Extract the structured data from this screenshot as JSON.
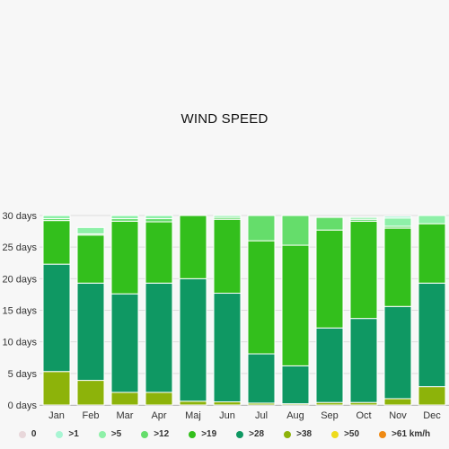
{
  "chart_data": {
    "type": "bar",
    "title": "WIND SPEED",
    "xlabel": "",
    "ylabel": "",
    "ylim": [
      0,
      30
    ],
    "y_ticks": [
      "0 days",
      "5 days",
      "10 days",
      "15 days",
      "20 days",
      "25 days",
      "30 days"
    ],
    "categories": [
      "Jan",
      "Feb",
      "Mar",
      "Apr",
      "Maj",
      "Jun",
      "Jul",
      "Aug",
      "Sep",
      "Oct",
      "Nov",
      "Dec"
    ],
    "series": [
      {
        "name": "0",
        "color": "#e8d7da",
        "values": [
          0,
          0,
          0,
          0,
          0,
          0,
          0,
          0,
          0,
          0,
          0,
          0
        ]
      },
      {
        "name": ">1",
        "color": "#a8f5d3",
        "values": [
          0,
          0,
          0,
          0,
          0,
          0,
          0,
          0,
          0,
          0,
          0.3,
          0
        ]
      },
      {
        "name": ">5",
        "color": "#8ef0a8",
        "values": [
          0.5,
          1.0,
          0.5,
          0.5,
          0,
          0.3,
          0,
          0,
          0,
          0.3,
          1.3,
          1.3
        ]
      },
      {
        "name": ">12",
        "color": "#65dd6b",
        "values": [
          0.3,
          0.2,
          0.4,
          0.5,
          0,
          0.3,
          4.0,
          4.7,
          2.0,
          0.3,
          0.3,
          0
        ]
      },
      {
        "name": ">19",
        "color": "#33bf1c",
        "values": [
          6.9,
          7.6,
          11.5,
          9.7,
          10.0,
          11.7,
          17.9,
          19.1,
          15.5,
          15.4,
          12.4,
          9.4
        ]
      },
      {
        "name": ">28",
        "color": "#0f9863",
        "values": [
          17.0,
          15.4,
          15.6,
          17.3,
          19.4,
          17.2,
          7.8,
          6.0,
          11.8,
          13.3,
          14.6,
          16.4
        ]
      },
      {
        "name": ">38",
        "color": "#8db30a",
        "values": [
          5.3,
          3.9,
          2.0,
          2.0,
          0.6,
          0.5,
          0.3,
          0.2,
          0.4,
          0.4,
          1.0,
          2.9
        ]
      },
      {
        "name": ">50",
        "color": "#eedb1c",
        "values": [
          0,
          0,
          0,
          0,
          0,
          0,
          0,
          0,
          0,
          0,
          0,
          0
        ]
      },
      {
        "name": ">61 km/h",
        "color": "#ef8a14",
        "values": [
          0,
          0,
          0,
          0,
          0,
          0,
          0,
          0,
          0,
          0,
          0,
          0
        ]
      }
    ],
    "grid": true,
    "legend_position": "bottom"
  }
}
